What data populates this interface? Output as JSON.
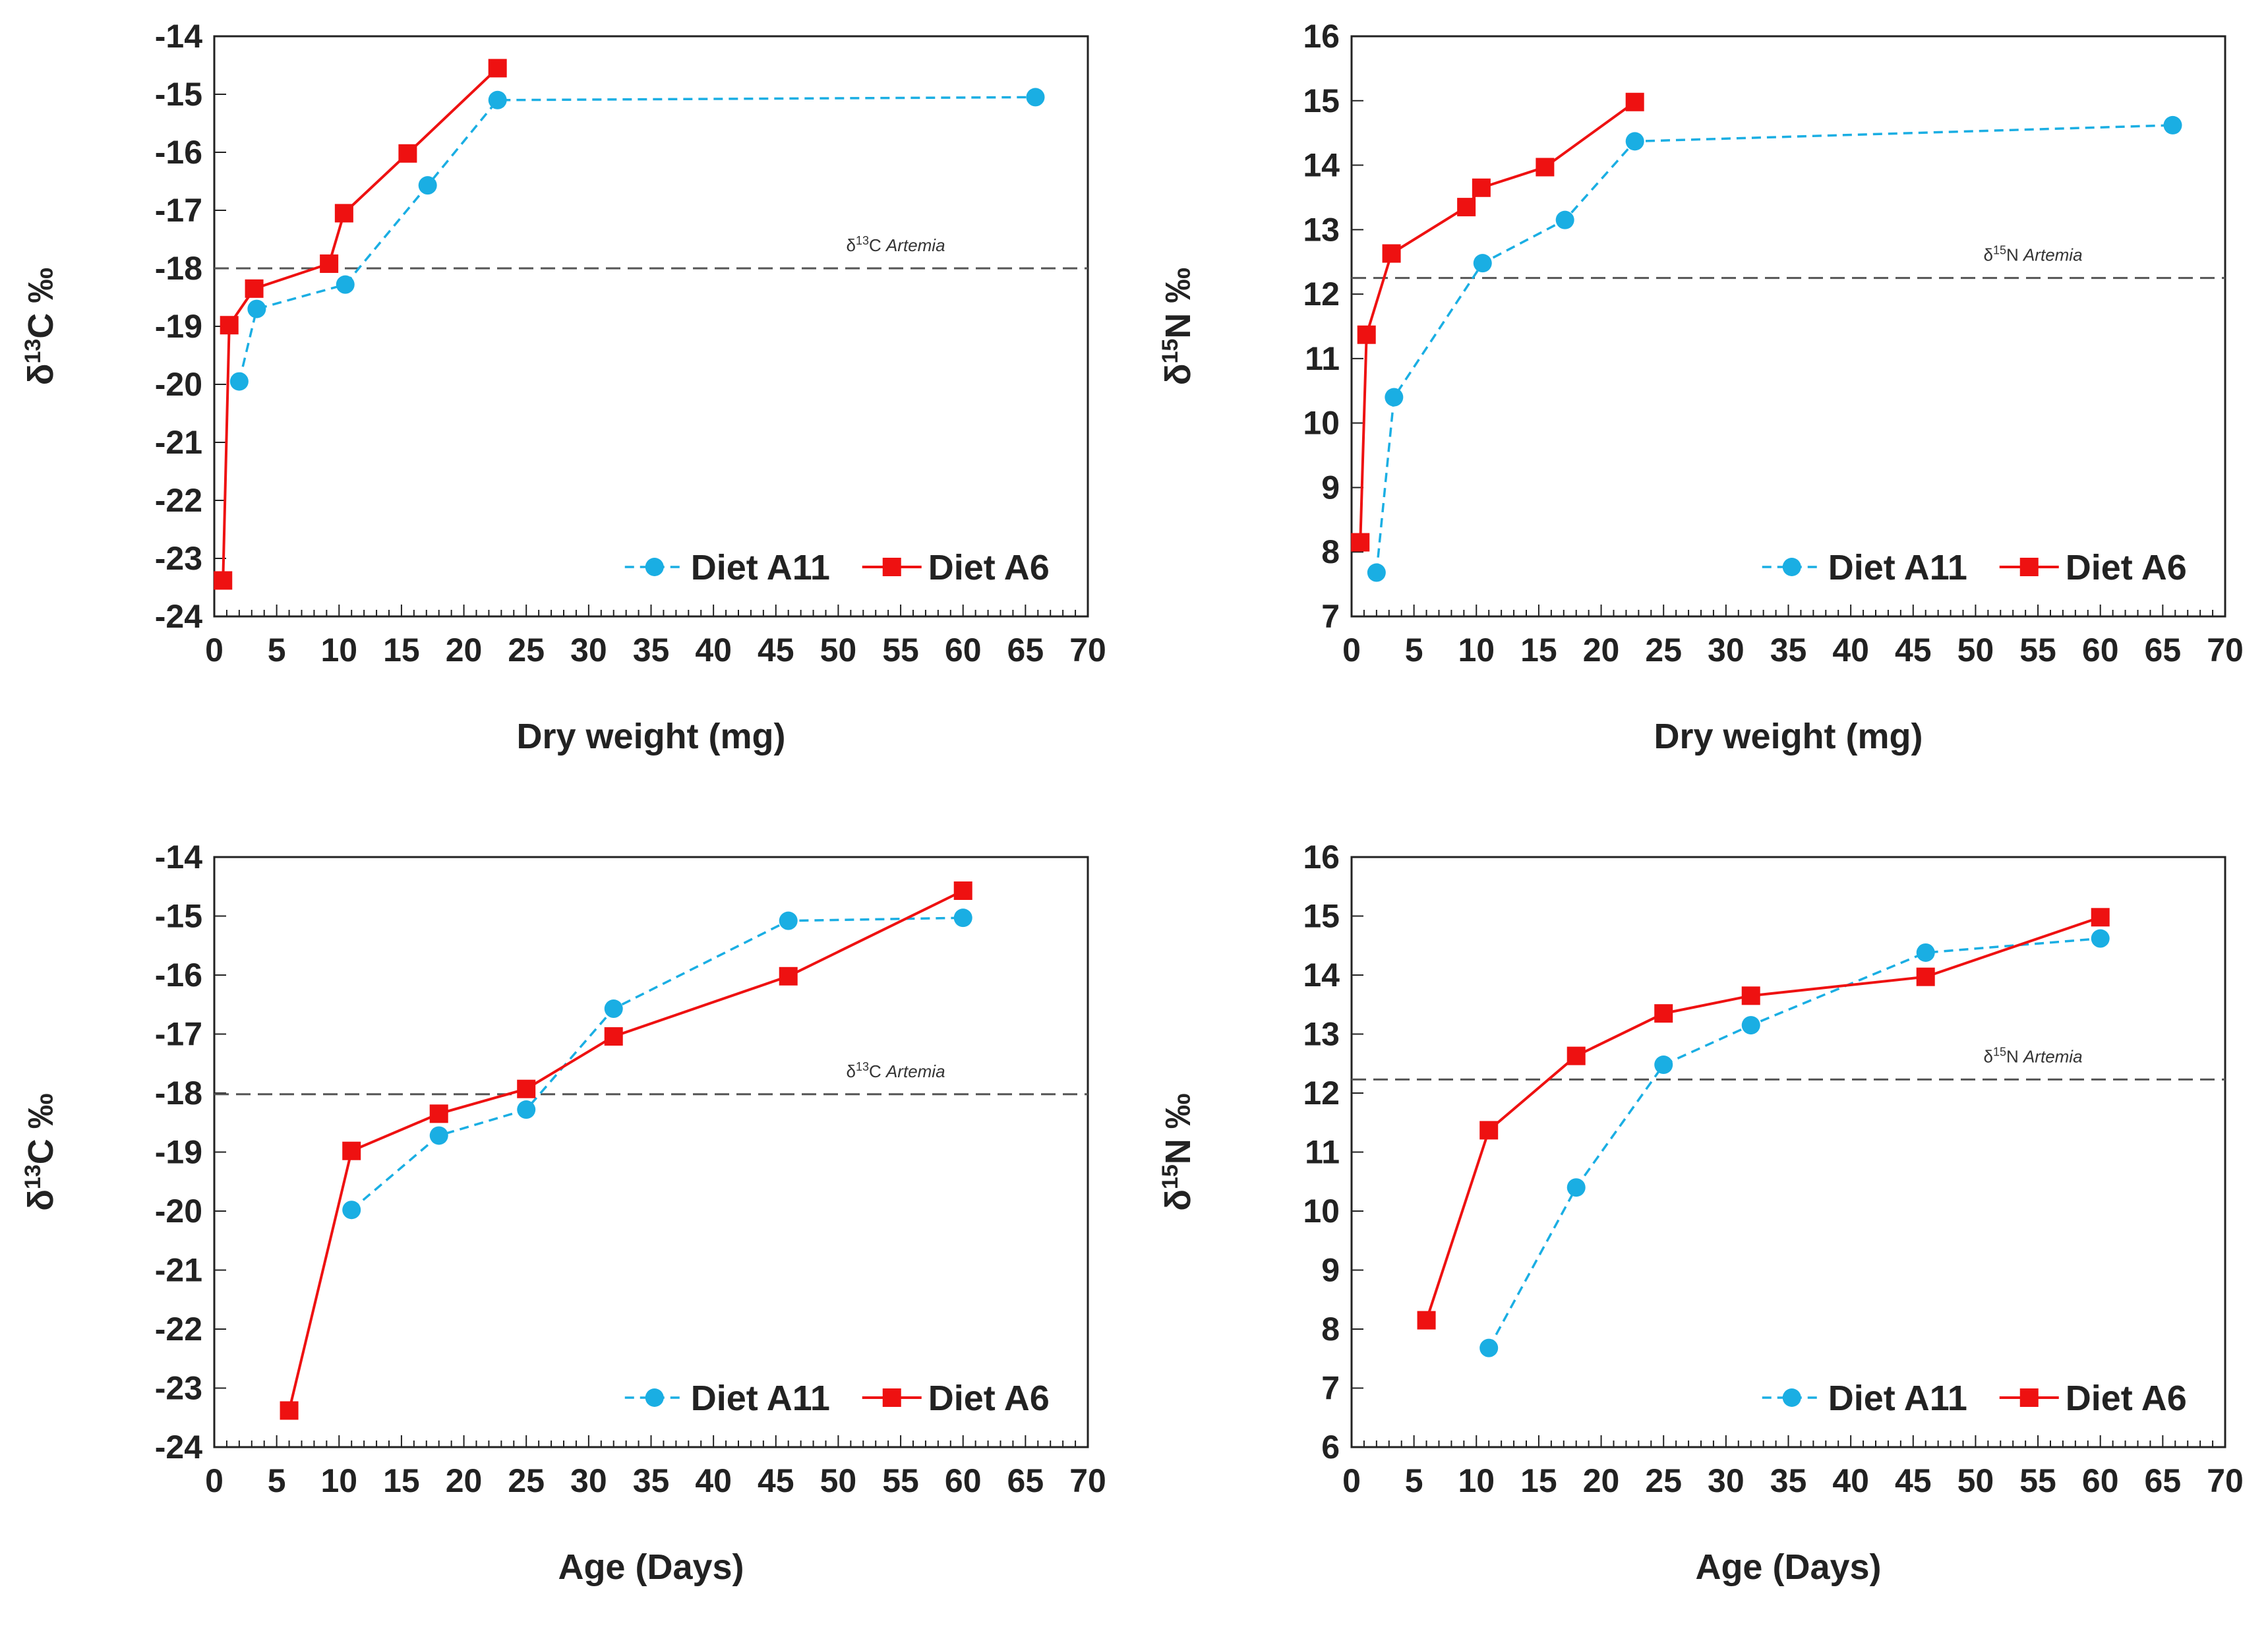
{
  "chart_data": [
    {
      "type": "line",
      "xlabel": "Dry weight (mg)",
      "ylabel_base": "δ",
      "ylabel_sup": "13",
      "ylabel_rest": "C ‰",
      "xlim": [
        0,
        70
      ],
      "ylim": [
        -24,
        -14
      ],
      "xticks": [
        "0",
        "5",
        "10",
        "15",
        "20",
        "25",
        "30",
        "35",
        "40",
        "45",
        "50",
        "55",
        "60",
        "65",
        "70"
      ],
      "yticks": [
        "-24",
        "-23",
        "-22",
        "-21",
        "-20",
        "-19",
        "-18",
        "-17",
        "-16",
        "-15",
        "-14"
      ],
      "ref_line": {
        "value": -18.0,
        "label_base": "δ",
        "label_sup": "13",
        "label_mid": "C ",
        "label_ital": "Artemia"
      },
      "series": [
        {
          "name": "Diet A11",
          "color": "#1aaee3",
          "marker": "circle",
          "dashed": true,
          "x": [
            2.0,
            3.4,
            10.5,
            17.1,
            22.7,
            65.8
          ],
          "y": [
            -19.95,
            -18.7,
            -18.28,
            -16.57,
            -15.1,
            -15.05
          ]
        },
        {
          "name": "Diet A6",
          "color": "#ee1111",
          "marker": "square",
          "dashed": false,
          "x": [
            0.7,
            1.2,
            3.2,
            9.2,
            10.4,
            15.5,
            22.7
          ],
          "y": [
            -23.38,
            -18.98,
            -18.35,
            -17.92,
            -17.05,
            -16.02,
            -14.55
          ]
        }
      ],
      "legend": {
        "items": [
          "Diet A11",
          "Diet A6"
        ]
      }
    },
    {
      "type": "line",
      "xlabel": "Dry weight (mg)",
      "ylabel_base": "δ",
      "ylabel_sup": "15",
      "ylabel_rest": "N ‰",
      "xlim": [
        0,
        70
      ],
      "ylim": [
        7,
        16
      ],
      "xticks": [
        "0",
        "5",
        "10",
        "15",
        "20",
        "25",
        "30",
        "35",
        "40",
        "45",
        "50",
        "55",
        "60",
        "65",
        "70"
      ],
      "yticks": [
        "7",
        "8",
        "9",
        "10",
        "11",
        "12",
        "13",
        "14",
        "15",
        "16"
      ],
      "ref_line": {
        "value": 12.25,
        "label_base": "δ",
        "label_sup": "15",
        "label_mid": "N ",
        "label_ital": "Artemia"
      },
      "series": [
        {
          "name": "Diet A11",
          "color": "#1aaee3",
          "marker": "circle",
          "dashed": true,
          "x": [
            2.0,
            3.4,
            10.5,
            17.1,
            22.7,
            65.8
          ],
          "y": [
            7.68,
            10.4,
            12.48,
            13.15,
            14.37,
            14.62
          ]
        },
        {
          "name": "Diet A6",
          "color": "#ee1111",
          "marker": "square",
          "dashed": false,
          "x": [
            0.7,
            1.2,
            3.2,
            9.2,
            10.4,
            15.5,
            22.7
          ],
          "y": [
            8.15,
            11.37,
            12.63,
            13.35,
            13.65,
            13.97,
            14.98
          ]
        }
      ],
      "legend": {
        "items": [
          "Diet A11",
          "Diet A6"
        ]
      }
    },
    {
      "type": "line",
      "xlabel": "Age (Days)",
      "ylabel_base": "δ",
      "ylabel_sup": "13",
      "ylabel_rest": "C ‰",
      "xlim": [
        0,
        70
      ],
      "ylim": [
        -24,
        -14
      ],
      "xticks": [
        "0",
        "5",
        "10",
        "15",
        "20",
        "25",
        "30",
        "35",
        "40",
        "45",
        "50",
        "55",
        "60",
        "65",
        "70"
      ],
      "yticks": [
        "-24",
        "-23",
        "-22",
        "-21",
        "-20",
        "-19",
        "-18",
        "-17",
        "-16",
        "-15",
        "-14"
      ],
      "ref_line": {
        "value": -18.02,
        "label_base": "δ",
        "label_sup": "13",
        "label_mid": "C ",
        "label_ital": "Artemia"
      },
      "series": [
        {
          "name": "Diet A11",
          "color": "#1aaee3",
          "marker": "circle",
          "dashed": true,
          "x": [
            11,
            18,
            25,
            32,
            46,
            60
          ],
          "y": [
            -19.98,
            -18.72,
            -18.28,
            -16.57,
            -15.08,
            -15.03
          ]
        },
        {
          "name": "Diet A6",
          "color": "#ee1111",
          "marker": "square",
          "dashed": false,
          "x": [
            6,
            11,
            18,
            25,
            32,
            46,
            60
          ],
          "y": [
            -23.38,
            -18.98,
            -18.35,
            -17.93,
            -17.04,
            -16.02,
            -14.57
          ]
        }
      ],
      "legend": {
        "items": [
          "Diet A11",
          "Diet A6"
        ]
      }
    },
    {
      "type": "line",
      "xlabel": "Age (Days)",
      "ylabel_base": "δ",
      "ylabel_sup": "15",
      "ylabel_rest": "N ‰",
      "xlim": [
        0,
        70
      ],
      "ylim": [
        6,
        16
      ],
      "xticks": [
        "0",
        "5",
        "10",
        "15",
        "20",
        "25",
        "30",
        "35",
        "40",
        "45",
        "50",
        "55",
        "60",
        "65",
        "70"
      ],
      "yticks": [
        "6",
        "7",
        "8",
        "9",
        "10",
        "11",
        "12",
        "13",
        "14",
        "15",
        "16"
      ],
      "ref_line": {
        "value": 12.23,
        "label_base": "δ",
        "label_sup": "15",
        "label_mid": "N ",
        "label_ital": "Artemia"
      },
      "series": [
        {
          "name": "Diet A11",
          "color": "#1aaee3",
          "marker": "circle",
          "dashed": true,
          "x": [
            11,
            18,
            25,
            32,
            46,
            60
          ],
          "y": [
            7.68,
            10.4,
            12.48,
            13.15,
            14.38,
            14.62
          ]
        },
        {
          "name": "Diet A6",
          "color": "#ee1111",
          "marker": "square",
          "dashed": false,
          "x": [
            6,
            11,
            18,
            25,
            32,
            46,
            60
          ],
          "y": [
            8.15,
            11.37,
            12.63,
            13.35,
            13.65,
            13.97,
            14.98
          ]
        }
      ],
      "legend": {
        "items": [
          "Diet A11",
          "Diet A6"
        ]
      }
    }
  ]
}
